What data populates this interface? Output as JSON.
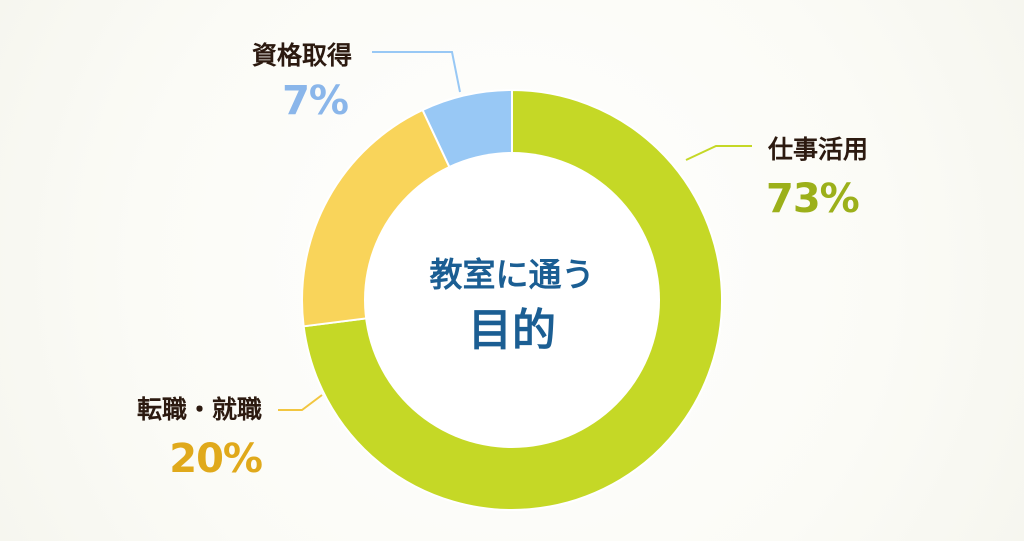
{
  "chart_data": {
    "type": "pie",
    "variant": "donut",
    "center_title": [
      "教室に通う",
      "目的"
    ],
    "slices": [
      {
        "label": "仕事活用",
        "value": 73,
        "value_label": "73%",
        "color": "#c5d826",
        "label_color": "#9cb01a",
        "line_color": "#c5d826"
      },
      {
        "label": "転職・就職",
        "value": 20,
        "value_label": "20%",
        "color": "#f9d45a",
        "label_color": "#e0a91b",
        "line_color": "#f2c640"
      },
      {
        "label": "資格取得",
        "value": 7,
        "value_label": "7%",
        "color": "#98c8f5",
        "label_color": "#8ab6ea",
        "line_color": "#98c8f5"
      }
    ],
    "start_angle": "12 o'clock",
    "direction": "clockwise",
    "legend": "none",
    "name_color": "#2c1a10",
    "center_color": "#1b5e93"
  }
}
